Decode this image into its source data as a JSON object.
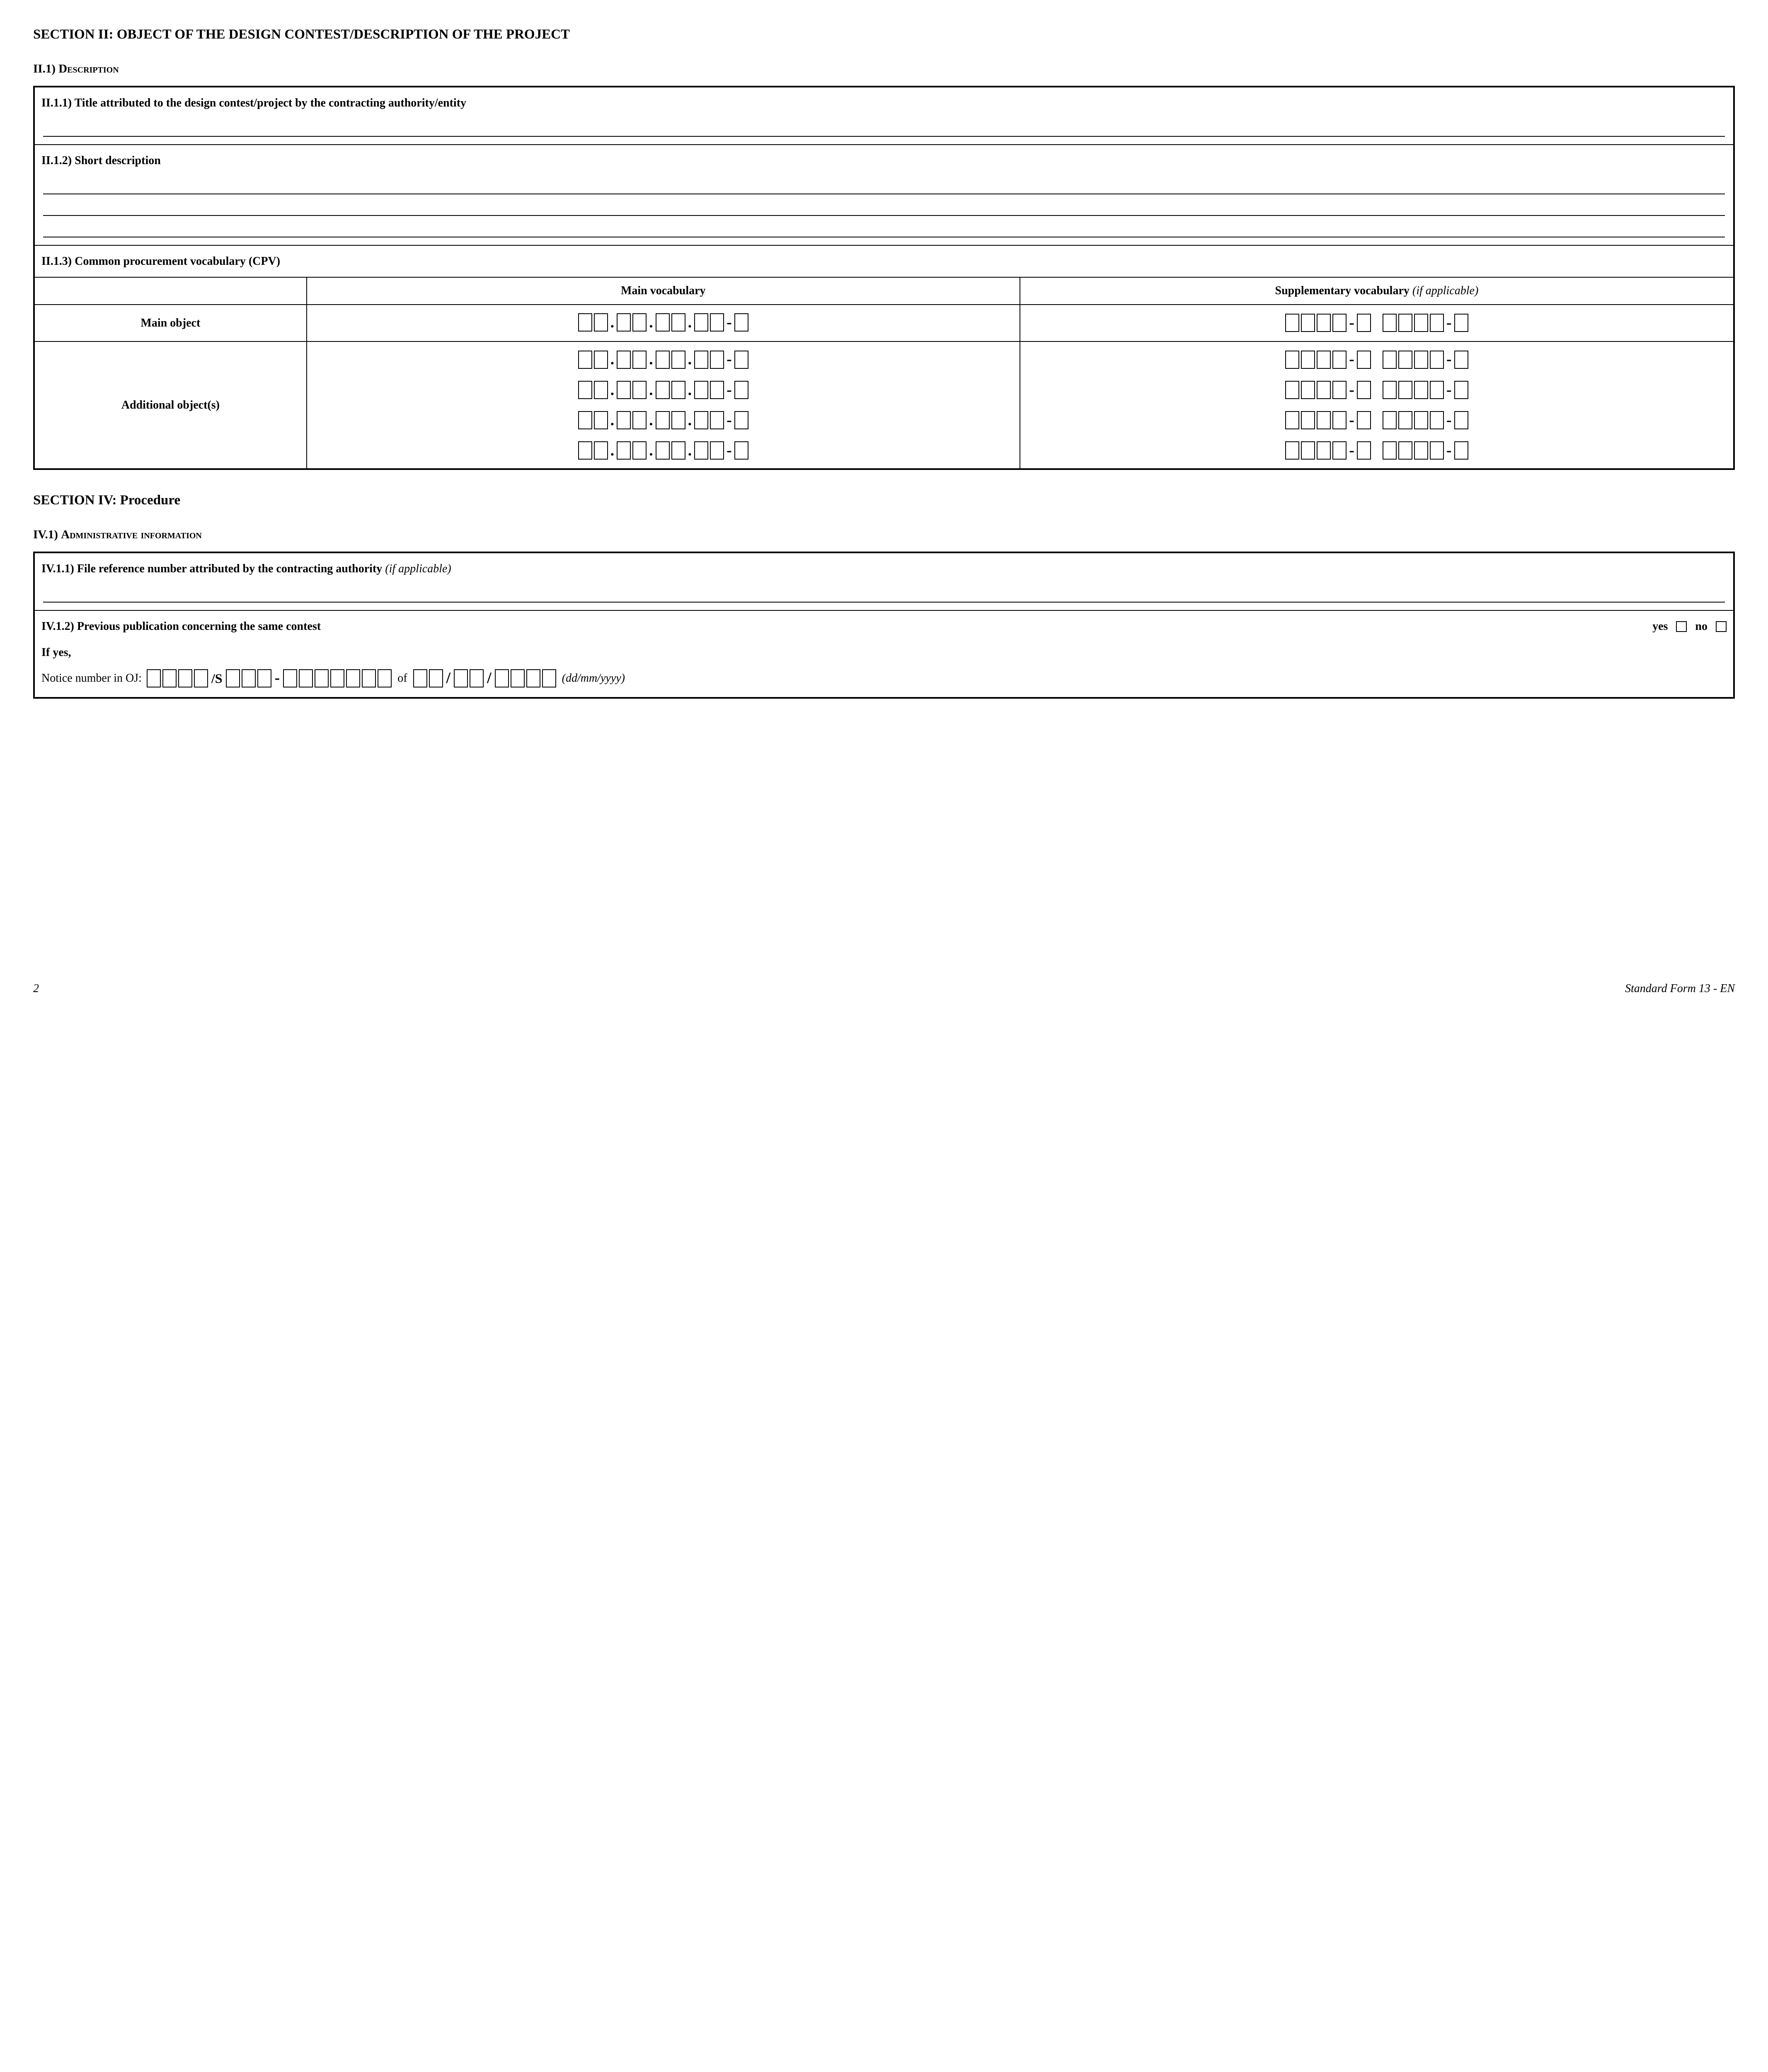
{
  "section2": {
    "heading": "SECTION II: OBJECT OF THE DESIGN CONTEST/DESCRIPTION OF THE PROJECT",
    "sub1_prefix": "II.1) ",
    "sub1_text": "Description",
    "cell_1_1": "II.1.1) Title attributed to the design contest/project by the contracting authority/entity",
    "cell_1_2": "II.1.2) Short description",
    "cell_1_3": "II.1.3) Common procurement vocabulary (CPV)",
    "cpv": {
      "col_main": "Main vocabulary",
      "col_supp": "Supplementary vocabulary ",
      "col_supp_italic": "(if applicable)",
      "row_main": "Main object",
      "row_add": "Additional object(s)"
    }
  },
  "section4": {
    "heading": "SECTION IV: Procedure",
    "sub1_prefix": "IV.1) ",
    "sub1_text": "Administrative information",
    "cell_1_1": "IV.1.1) File reference number attributed by the contracting authority ",
    "cell_1_1_italic": "(if applicable)",
    "cell_1_2": "IV.1.2) Previous publication concerning the same contest",
    "yes": "yes",
    "no": "no",
    "if_yes": "If yes,",
    "notice_prefix": "Notice number in OJ:",
    "of": "of",
    "date_hint": "(dd/mm/yyyy)"
  },
  "footer": {
    "page": "2",
    "form": "Standard Form 13 - EN"
  }
}
